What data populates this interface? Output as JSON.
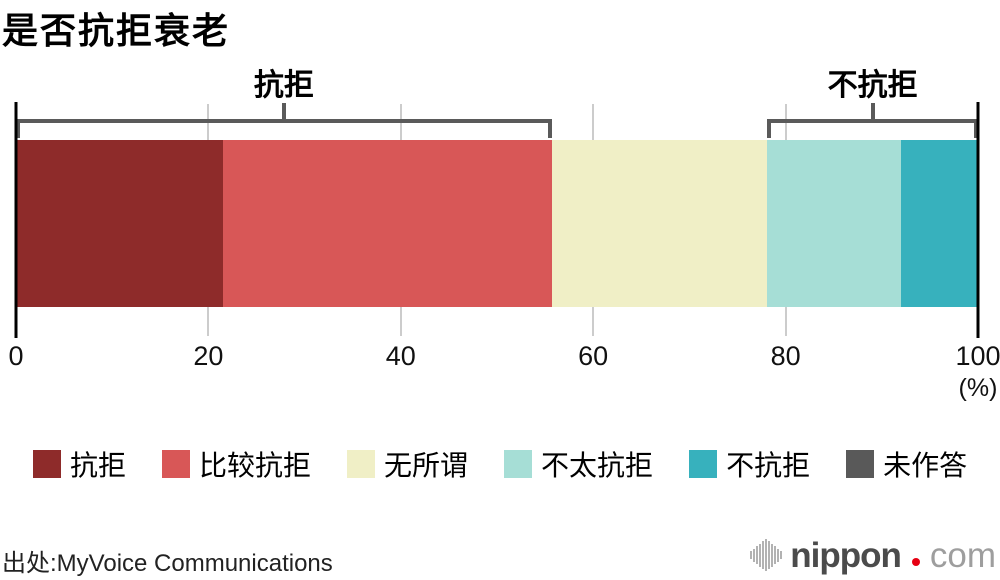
{
  "chart_data": {
    "type": "bar",
    "orientation": "horizontal-stacked",
    "title": "是否抗拒衰老",
    "unit_label": "(%)",
    "xlim": [
      0,
      100
    ],
    "x_ticks": [
      0,
      20,
      40,
      60,
      80,
      100
    ],
    "grid": true,
    "legend_position": "bottom",
    "segments": [
      {
        "label": "抗拒",
        "value": 21.5,
        "color": "#8e2b2a"
      },
      {
        "label": "比较抗拒",
        "value": 34.2,
        "color": "#d85757"
      },
      {
        "label": "无所谓",
        "value": 22.4,
        "color": "#f0efc6"
      },
      {
        "label": "不太抗拒",
        "value": 13.9,
        "color": "#a6ded6"
      },
      {
        "label": "不抗拒",
        "value": 7.9,
        "color": "#37b1bd"
      },
      {
        "label": "未作答",
        "value": 0.1,
        "color": "#595959"
      }
    ],
    "brackets": [
      {
        "label": "抗拒",
        "from": 0,
        "to": 55.7
      },
      {
        "label": "不抗拒",
        "from": 78.1,
        "to": 100
      }
    ]
  },
  "colors": {
    "bracket": "#5a5a5a",
    "gridline": "#cccccc",
    "axis_line": "#000000"
  },
  "footer": {
    "source": "出处:MyVoice Communications",
    "logo": {
      "icon": "soundwave-icon",
      "word": "nippon",
      "dot_color": "#e60012",
      "tld": "com"
    }
  }
}
